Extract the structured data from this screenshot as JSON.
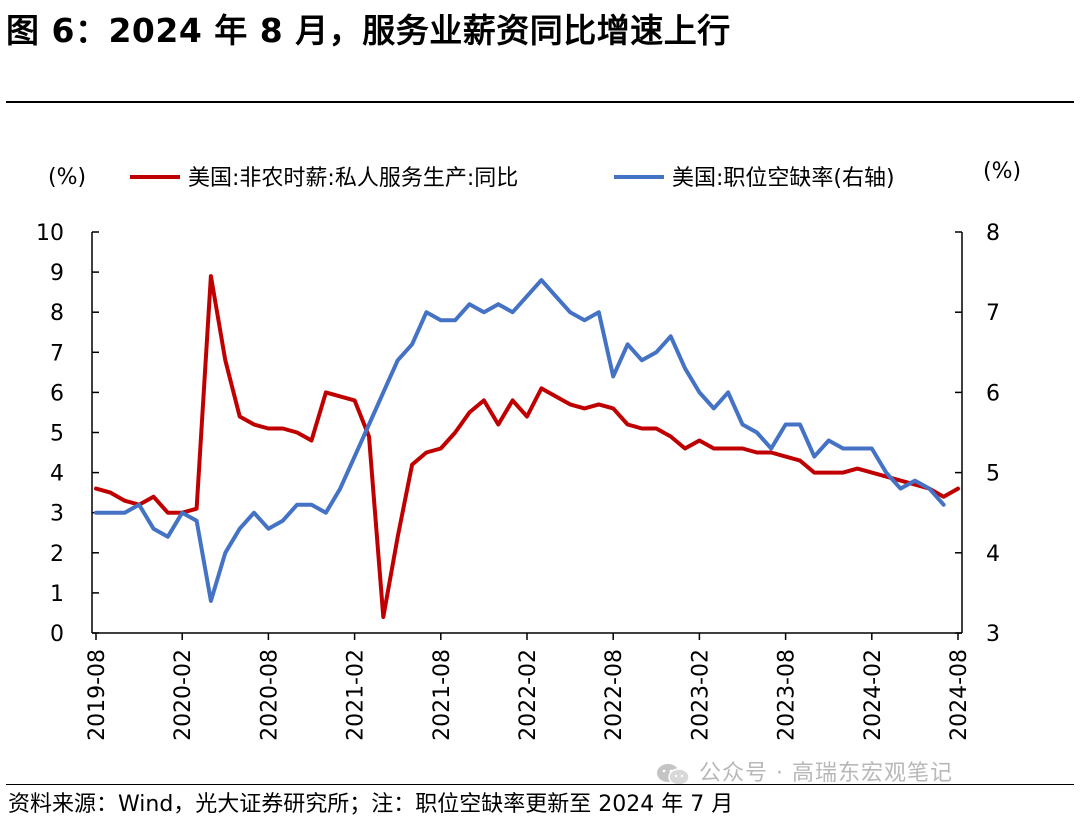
{
  "figure": {
    "title": "图 6：2024 年 8 月，服务业薪资同比增速上行",
    "source": "资料来源：Wind，光大证券研究所；注：职位空缺率更新至 2024 年 7 月",
    "watermark": "公众号 · 高瑞东宏观笔记"
  },
  "chart_data": {
    "type": "line",
    "left_unit": "(%)",
    "right_unit": "(%)",
    "left_ylim": [
      0,
      10
    ],
    "right_ylim": [
      3,
      8
    ],
    "left_ticks": [
      "0",
      "1",
      "2",
      "3",
      "4",
      "5",
      "6",
      "7",
      "8",
      "9",
      "10"
    ],
    "right_ticks": [
      "3",
      "4",
      "5",
      "6",
      "7",
      "8"
    ],
    "x_ticks": [
      "2019-08",
      "2020-02",
      "2020-08",
      "2021-02",
      "2021-08",
      "2022-02",
      "2022-08",
      "2023-02",
      "2023-08",
      "2024-02",
      "2024-08"
    ],
    "x_range": [
      "2019-08",
      "2024-08"
    ],
    "grid": false,
    "legend_position": "top",
    "series": [
      {
        "name": "美国:非农时薪:私人服务生产:同比",
        "axis": "left",
        "color": "#c00000",
        "points": [
          [
            "2019-08",
            3.6
          ],
          [
            "2019-09",
            3.5
          ],
          [
            "2019-10",
            3.3
          ],
          [
            "2019-11",
            3.2
          ],
          [
            "2019-12",
            3.4
          ],
          [
            "2020-01",
            3.0
          ],
          [
            "2020-02",
            3.0
          ],
          [
            "2020-03",
            3.1
          ],
          [
            "2020-04",
            8.9
          ],
          [
            "2020-05",
            6.8
          ],
          [
            "2020-06",
            5.4
          ],
          [
            "2020-07",
            5.2
          ],
          [
            "2020-08",
            5.1
          ],
          [
            "2020-09",
            5.1
          ],
          [
            "2020-10",
            5.0
          ],
          [
            "2020-11",
            4.8
          ],
          [
            "2020-12",
            6.0
          ],
          [
            "2021-01",
            5.9
          ],
          [
            "2021-02",
            5.8
          ],
          [
            "2021-03",
            4.9
          ],
          [
            "2021-04",
            0.4
          ],
          [
            "2021-05",
            2.4
          ],
          [
            "2021-06",
            4.2
          ],
          [
            "2021-07",
            4.5
          ],
          [
            "2021-08",
            4.6
          ],
          [
            "2021-09",
            5.0
          ],
          [
            "2021-10",
            5.5
          ],
          [
            "2021-11",
            5.8
          ],
          [
            "2021-12",
            5.2
          ],
          [
            "2022-01",
            5.8
          ],
          [
            "2022-02",
            5.4
          ],
          [
            "2022-03",
            6.1
          ],
          [
            "2022-04",
            5.9
          ],
          [
            "2022-05",
            5.7
          ],
          [
            "2022-06",
            5.6
          ],
          [
            "2022-07",
            5.7
          ],
          [
            "2022-08",
            5.6
          ],
          [
            "2022-09",
            5.2
          ],
          [
            "2022-10",
            5.1
          ],
          [
            "2022-11",
            5.1
          ],
          [
            "2022-12",
            4.9
          ],
          [
            "2023-01",
            4.6
          ],
          [
            "2023-02",
            4.8
          ],
          [
            "2023-03",
            4.6
          ],
          [
            "2023-04",
            4.6
          ],
          [
            "2023-05",
            4.6
          ],
          [
            "2023-06",
            4.5
          ],
          [
            "2023-07",
            4.5
          ],
          [
            "2023-08",
            4.4
          ],
          [
            "2023-09",
            4.3
          ],
          [
            "2023-10",
            4.0
          ],
          [
            "2023-11",
            4.0
          ],
          [
            "2023-12",
            4.0
          ],
          [
            "2024-01",
            4.1
          ],
          [
            "2024-02",
            4.0
          ],
          [
            "2024-03",
            3.9
          ],
          [
            "2024-04",
            3.8
          ],
          [
            "2024-05",
            3.7
          ],
          [
            "2024-06",
            3.6
          ],
          [
            "2024-07",
            3.4
          ],
          [
            "2024-08",
            3.6
          ]
        ]
      },
      {
        "name": "美国:职位空缺率(右轴)",
        "axis": "right",
        "color": "#4472c4",
        "points": [
          [
            "2019-08",
            4.5
          ],
          [
            "2019-09",
            4.5
          ],
          [
            "2019-10",
            4.5
          ],
          [
            "2019-11",
            4.6
          ],
          [
            "2019-12",
            4.3
          ],
          [
            "2020-01",
            4.2
          ],
          [
            "2020-02",
            4.5
          ],
          [
            "2020-03",
            4.4
          ],
          [
            "2020-04",
            3.4
          ],
          [
            "2020-05",
            4.0
          ],
          [
            "2020-06",
            4.3
          ],
          [
            "2020-07",
            4.5
          ],
          [
            "2020-08",
            4.3
          ],
          [
            "2020-09",
            4.4
          ],
          [
            "2020-10",
            4.6
          ],
          [
            "2020-11",
            4.6
          ],
          [
            "2020-12",
            4.5
          ],
          [
            "2021-01",
            4.8
          ],
          [
            "2021-02",
            5.2
          ],
          [
            "2021-03",
            5.6
          ],
          [
            "2021-04",
            6.0
          ],
          [
            "2021-05",
            6.4
          ],
          [
            "2021-06",
            6.6
          ],
          [
            "2021-07",
            7.0
          ],
          [
            "2021-08",
            6.9
          ],
          [
            "2021-09",
            6.9
          ],
          [
            "2021-10",
            7.1
          ],
          [
            "2021-11",
            7.0
          ],
          [
            "2021-12",
            7.1
          ],
          [
            "2022-01",
            7.0
          ],
          [
            "2022-02",
            7.2
          ],
          [
            "2022-03",
            7.4
          ],
          [
            "2022-04",
            7.2
          ],
          [
            "2022-05",
            7.0
          ],
          [
            "2022-06",
            6.9
          ],
          [
            "2022-07",
            7.0
          ],
          [
            "2022-08",
            6.2
          ],
          [
            "2022-09",
            6.6
          ],
          [
            "2022-10",
            6.4
          ],
          [
            "2022-11",
            6.5
          ],
          [
            "2022-12",
            6.7
          ],
          [
            "2023-01",
            6.3
          ],
          [
            "2023-02",
            6.0
          ],
          [
            "2023-03",
            5.8
          ],
          [
            "2023-04",
            6.0
          ],
          [
            "2023-05",
            5.6
          ],
          [
            "2023-06",
            5.5
          ],
          [
            "2023-07",
            5.3
          ],
          [
            "2023-08",
            5.6
          ],
          [
            "2023-09",
            5.6
          ],
          [
            "2023-10",
            5.2
          ],
          [
            "2023-11",
            5.4
          ],
          [
            "2023-12",
            5.3
          ],
          [
            "2024-01",
            5.3
          ],
          [
            "2024-02",
            5.3
          ],
          [
            "2024-03",
            5.0
          ],
          [
            "2024-04",
            4.8
          ],
          [
            "2024-05",
            4.9
          ],
          [
            "2024-06",
            4.8
          ],
          [
            "2024-07",
            4.6
          ]
        ]
      }
    ]
  }
}
